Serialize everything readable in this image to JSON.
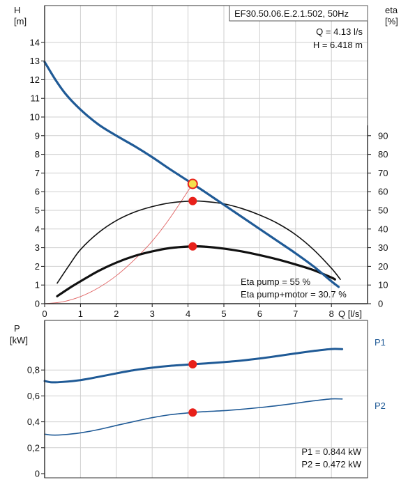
{
  "colors": {
    "head_curve": "#1f5a96",
    "power_curve": "#1f5a96",
    "efficiency_curve": "#111111",
    "system_curve": "#e06060",
    "operating_point": "#e8201a",
    "duty_point_fill": "#f4e04d",
    "series_label": "#1f5a96"
  },
  "top_chart": {
    "title": "EF30.50.06.E.2.1.502, 50Hz",
    "y_label_left_line1": "H",
    "y_label_left_line2": "[m]",
    "y_label_right_line1": "eta",
    "y_label_right_line2": "[%]",
    "x_label": "Q [l/s]",
    "q_readout": "Q = 4.13 l/s",
    "h_readout": "H = 6.418 m",
    "eta_pump_readout": "Eta pump = 55 %",
    "eta_total_readout": "Eta pump+motor = 30.7 %"
  },
  "bottom_chart": {
    "y_label_line1": "P",
    "y_label_line2": "[kW]",
    "p1_series_label": "P1",
    "p2_series_label": "P2",
    "p1_readout": "P1 = 0.844 kW",
    "p2_readout": "P2 = 0.472 kW"
  },
  "chart_data": [
    {
      "type": "line",
      "title": "EF30.50.06.E.2.1.502, 50Hz",
      "xlabel": "Q [l/s]",
      "ylabel": "H [m]",
      "ylabel_right": "eta [%]",
      "xlim": [
        0,
        9
      ],
      "ylim": [
        0,
        15
      ],
      "ylim_right": [
        0,
        100
      ],
      "grid": true,
      "x_ticks": [
        "0",
        "1",
        "2",
        "3",
        "4",
        "5",
        "6",
        "7",
        "8"
      ],
      "y_ticks": [
        "0",
        "1",
        "2",
        "3",
        "4",
        "5",
        "6",
        "7",
        "8",
        "9",
        "10",
        "11",
        "12",
        "13",
        "14"
      ],
      "y_ticks_right": [
        "0",
        "10",
        "20",
        "30",
        "40",
        "50",
        "60",
        "70",
        "80",
        "90"
      ],
      "series": [
        {
          "axis": "left",
          "style": "head",
          "x": [
            0,
            0.3,
            0.6,
            1.0,
            1.5,
            2.0,
            2.5,
            3.0,
            3.5,
            4.13,
            4.5,
            5.0,
            5.5,
            6.0,
            6.5,
            7.0,
            7.5,
            8.0,
            8.2
          ],
          "values": [
            12.95,
            12.0,
            11.2,
            10.4,
            9.6,
            9.0,
            8.45,
            7.85,
            7.2,
            6.418,
            5.95,
            5.3,
            4.65,
            4.0,
            3.35,
            2.7,
            2.0,
            1.2,
            0.9
          ]
        },
        {
          "axis": "right",
          "style": "eta_pump",
          "x": [
            0.35,
            0.7,
            1.0,
            1.5,
            2.0,
            2.5,
            3.0,
            3.5,
            4.13,
            4.5,
            5.0,
            5.5,
            6.0,
            6.5,
            7.0,
            7.5,
            8.0,
            8.25
          ],
          "values": [
            11,
            21,
            29,
            38,
            44.5,
            49,
            52,
            54,
            55,
            54.7,
            53.5,
            51,
            47.5,
            43,
            37,
            29,
            19,
            13
          ]
        },
        {
          "axis": "right",
          "style": "eta_total",
          "x": [
            0.35,
            0.7,
            1.0,
            1.5,
            2.0,
            2.5,
            3.0,
            3.5,
            4.13,
            4.5,
            5.0,
            5.5,
            6.0,
            6.5,
            7.0,
            7.5,
            8.0,
            8.1
          ],
          "values": [
            4,
            8.5,
            12,
            17.5,
            22,
            25.5,
            28,
            29.8,
            30.7,
            30.5,
            29.5,
            28,
            26,
            23.7,
            21,
            18,
            14,
            13
          ]
        },
        {
          "axis": "left",
          "style": "system",
          "x": [
            0,
            0.5,
            1.0,
            1.5,
            2.0,
            2.5,
            3.0,
            3.5,
            4.13
          ],
          "values": [
            0,
            0.1,
            0.38,
            0.85,
            1.5,
            2.35,
            3.35,
            4.6,
            6.418
          ]
        }
      ],
      "operating_points": [
        {
          "x": 4.13,
          "y": 6.418,
          "axis": "left",
          "kind": "duty"
        },
        {
          "x": 4.13,
          "y": 55,
          "axis": "right",
          "kind": "point"
        },
        {
          "x": 4.13,
          "y": 30.7,
          "axis": "right",
          "kind": "point"
        }
      ]
    },
    {
      "type": "line",
      "ylabel": "P [kW]",
      "xlim": [
        0,
        9
      ],
      "ylim": [
        0,
        1.0
      ],
      "grid": true,
      "y_ticks": [
        "0",
        "0,2",
        "0,4",
        "0,6",
        "0,8"
      ],
      "series": [
        {
          "name": "P1",
          "style": "p1",
          "x": [
            0,
            0.2,
            0.5,
            1.0,
            1.5,
            2.0,
            2.5,
            3.0,
            3.5,
            4.13,
            4.5,
            5.0,
            5.5,
            6.0,
            6.5,
            7.0,
            7.5,
            8.0,
            8.3
          ],
          "values": [
            0.715,
            0.705,
            0.708,
            0.722,
            0.747,
            0.774,
            0.799,
            0.818,
            0.832,
            0.844,
            0.851,
            0.861,
            0.873,
            0.889,
            0.908,
            0.928,
            0.947,
            0.962,
            0.961
          ]
        },
        {
          "name": "P2",
          "style": "p2",
          "x": [
            0,
            0.2,
            0.5,
            1.0,
            1.5,
            2.0,
            2.5,
            3.0,
            3.5,
            4.13,
            4.5,
            5.0,
            5.5,
            6.0,
            6.5,
            7.0,
            7.5,
            8.0,
            8.3
          ],
          "values": [
            0.305,
            0.298,
            0.3,
            0.315,
            0.34,
            0.372,
            0.403,
            0.432,
            0.455,
            0.472,
            0.479,
            0.486,
            0.497,
            0.51,
            0.525,
            0.543,
            0.562,
            0.577,
            0.576
          ]
        }
      ],
      "operating_points": [
        {
          "x": 4.13,
          "y": 0.844,
          "kind": "point"
        },
        {
          "x": 4.13,
          "y": 0.472,
          "kind": "point"
        }
      ]
    }
  ]
}
